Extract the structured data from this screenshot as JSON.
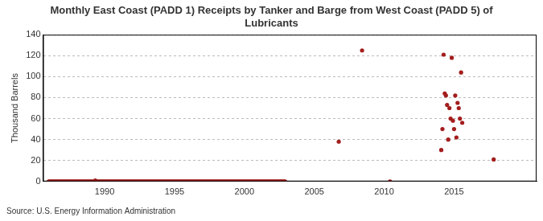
{
  "chart_data": {
    "type": "scatter",
    "title": "Monthly East Coast (PADD 1) Receipts by Tanker and Barge from West Coast (PADD 5) of Lubricants",
    "y_label": "Thousand Barrels",
    "source": "Source: U.S. Energy Information Administration",
    "color": "#a31d1d",
    "marker": "circle",
    "grid": true,
    "xlim": [
      1985.6,
      2020.9
    ],
    "xticks": [
      1990,
      1995,
      2000,
      2005,
      2010,
      2015
    ],
    "ylim": [
      0,
      140
    ],
    "yticks": [
      0,
      20,
      40,
      60,
      80,
      100,
      120,
      140
    ],
    "x": [
      1986,
      1986.083,
      1986.167,
      1986.25,
      1986.333,
      1986.417,
      1986.5,
      1986.583,
      1986.667,
      1986.75,
      1986.833,
      1986.917,
      1987,
      1987.083,
      1987.167,
      1987.25,
      1987.333,
      1987.417,
      1987.5,
      1987.583,
      1987.667,
      1987.75,
      1987.833,
      1987.917,
      1988,
      1988.083,
      1988.167,
      1988.25,
      1988.333,
      1988.417,
      1988.5,
      1988.583,
      1988.667,
      1988.75,
      1988.833,
      1988.917,
      1989,
      1989.083,
      1989.167,
      1989.25,
      1989.333,
      1989.417,
      1989.5,
      1989.583,
      1989.667,
      1989.75,
      1989.833,
      1989.917,
      1990,
      1990.083,
      1990.167,
      1990.25,
      1990.333,
      1990.417,
      1990.5,
      1990.583,
      1990.667,
      1990.75,
      1990.833,
      1990.917,
      1991,
      1991.083,
      1991.167,
      1991.25,
      1991.333,
      1991.417,
      1991.5,
      1991.583,
      1991.667,
      1991.75,
      1991.833,
      1991.917,
      1992,
      1992.083,
      1992.167,
      1992.25,
      1992.333,
      1992.417,
      1992.5,
      1992.583,
      1992.667,
      1992.75,
      1992.833,
      1992.917,
      1993,
      1993.083,
      1993.167,
      1993.25,
      1993.333,
      1993.417,
      1993.5,
      1993.583,
      1993.667,
      1993.75,
      1993.833,
      1993.917,
      1994,
      1994.083,
      1994.167,
      1994.25,
      1994.333,
      1994.417,
      1994.5,
      1994.583,
      1994.667,
      1994.75,
      1994.833,
      1994.917,
      1995,
      1995.083,
      1995.167,
      1995.25,
      1995.333,
      1995.417,
      1995.5,
      1995.583,
      1995.667,
      1995.75,
      1995.833,
      1995.917,
      1996,
      1996.083,
      1996.167,
      1996.25,
      1996.333,
      1996.417,
      1996.5,
      1996.583,
      1996.667,
      1996.75,
      1996.833,
      1996.917,
      1997,
      1997.083,
      1997.167,
      1997.25,
      1997.333,
      1997.417,
      1997.5,
      1997.583,
      1997.667,
      1997.75,
      1997.833,
      1997.917,
      1998,
      1998.083,
      1998.167,
      1998.25,
      1998.333,
      1998.417,
      1998.5,
      1998.583,
      1998.667,
      1998.75,
      1998.833,
      1998.917,
      1999,
      1999.083,
      1999.167,
      1999.25,
      1999.333,
      1999.417,
      1999.5,
      1999.583,
      1999.667,
      1999.75,
      1999.833,
      1999.917,
      2000,
      2000.083,
      2000.167,
      2000.25,
      2000.333,
      2000.417,
      2000.5,
      2000.583,
      2000.667,
      2000.75,
      2000.833,
      2000.917,
      2001,
      2001.083,
      2001.167,
      2001.25,
      2001.333,
      2001.417,
      2001.5,
      2001.583,
      2001.667,
      2001.75,
      2001.833,
      2001.917,
      2002,
      2002.083,
      2002.167,
      2002.25,
      2002.333,
      2002.417,
      2002.5,
      2002.583,
      2002.667,
      2002.75,
      2002.833,
      2002.917,
      2006.75,
      2008.417,
      2010.417,
      2014.083,
      2014.167,
      2014.25,
      2014.333,
      2014.417,
      2014.5,
      2014.583,
      2014.667,
      2014.75,
      2014.833,
      2014.917,
      2015,
      2015.083,
      2015.167,
      2015.25,
      2015.333,
      2015.417,
      2015.5,
      2015.583,
      2017.833
    ],
    "values": [
      0,
      0,
      0,
      0,
      0,
      0,
      0,
      0,
      0,
      0,
      0,
      0,
      0,
      0,
      0,
      0,
      0,
      0,
      0,
      0,
      0,
      0,
      0,
      0,
      0,
      0,
      0,
      0,
      0,
      0,
      0,
      0,
      0,
      0,
      0,
      0,
      0,
      0,
      0,
      0,
      1,
      0,
      0,
      0,
      0,
      0,
      0,
      0,
      0,
      0,
      0,
      0,
      0,
      0,
      0,
      0,
      0,
      0,
      0,
      0,
      0,
      0,
      0,
      0,
      0,
      0,
      0,
      0,
      0,
      0,
      0,
      0,
      0,
      0,
      0,
      0,
      0,
      0,
      0,
      0,
      0,
      0,
      0,
      0,
      0,
      0,
      0,
      0,
      0,
      0,
      0,
      0,
      0,
      0,
      0,
      0,
      0,
      0,
      0,
      0,
      0,
      0,
      0,
      0,
      0,
      0,
      0,
      0,
      0,
      0,
      0,
      0,
      0,
      0,
      0,
      0,
      0,
      0,
      0,
      0,
      0,
      0,
      0,
      0,
      0,
      0,
      0,
      0,
      0,
      0,
      0,
      0,
      0,
      0,
      0,
      0,
      0,
      0,
      0,
      0,
      0,
      0,
      0,
      0,
      0,
      0,
      0,
      0,
      0,
      0,
      0,
      0,
      0,
      0,
      0,
      0,
      0,
      0,
      0,
      0,
      0,
      0,
      0,
      0,
      0,
      0,
      0,
      0,
      0,
      0,
      0,
      0,
      0,
      0,
      0,
      0,
      0,
      0,
      0,
      0,
      0,
      0,
      0,
      0,
      0,
      0,
      0,
      0,
      0,
      0,
      0,
      0,
      0,
      0,
      0,
      0,
      0,
      0,
      0,
      0,
      0,
      0,
      0,
      0,
      38,
      125,
      0,
      30,
      50,
      121,
      84,
      82,
      73,
      40,
      70,
      60,
      118,
      58,
      50,
      82,
      42,
      75,
      70,
      60,
      104,
      56,
      21
    ]
  }
}
